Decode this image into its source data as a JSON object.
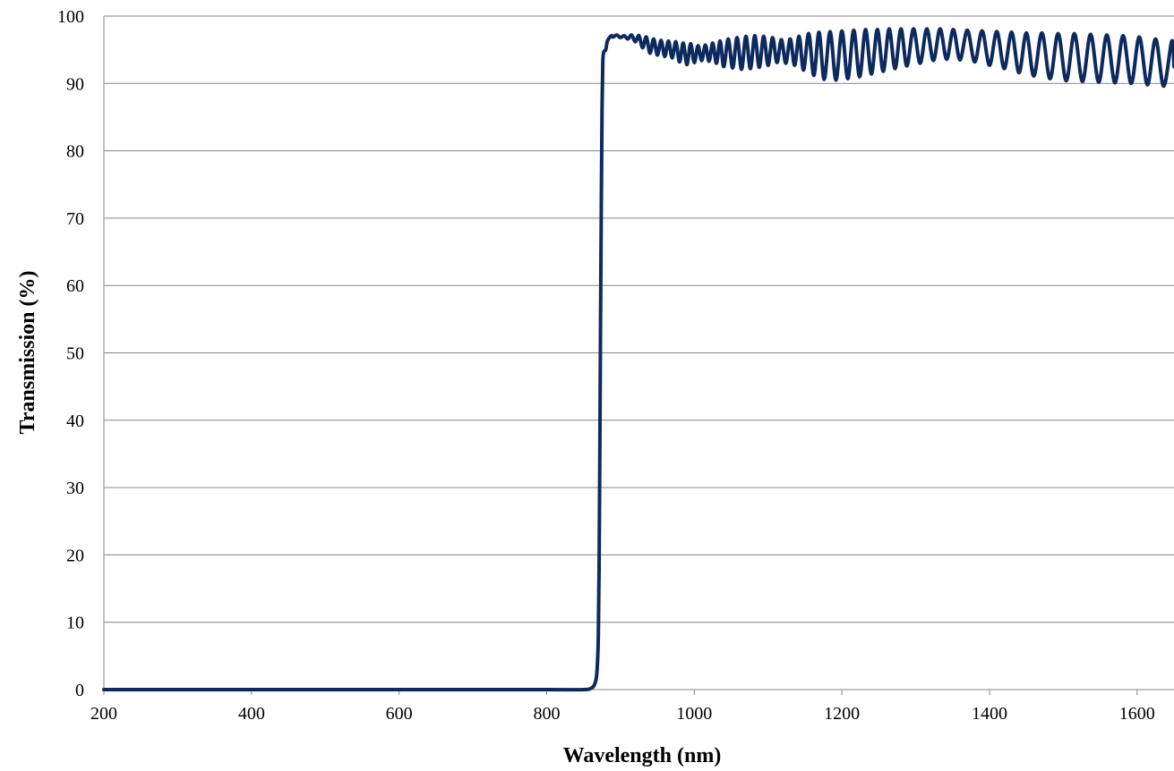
{
  "chart_data": {
    "type": "line",
    "title": "",
    "xlabel": "Wavelength (nm)",
    "ylabel": "Transmission (%)",
    "xlim": [
      200,
      1650
    ],
    "ylim": [
      0,
      100
    ],
    "x_ticks": [
      200,
      400,
      600,
      800,
      1000,
      1200,
      1400,
      1600
    ],
    "y_ticks": [
      0,
      10,
      20,
      30,
      40,
      50,
      60,
      70,
      80,
      90,
      100
    ],
    "grid": "horizontal",
    "legend": "none",
    "line_color": "#0d2a5e",
    "grid_color": "#868686",
    "series": [
      {
        "x": [
          200,
          300,
          400,
          500,
          600,
          700,
          800,
          850,
          860,
          865,
          868,
          870,
          871,
          872,
          873,
          874,
          875,
          876,
          877,
          878,
          880,
          882,
          885,
          888,
          890,
          895,
          900,
          905,
          910,
          915,
          920,
          925,
          930,
          935,
          940,
          945,
          950,
          955,
          960,
          965,
          970,
          975,
          980,
          985,
          990,
          995,
          1000,
          1005,
          1010,
          1015,
          1020,
          1025,
          1030,
          1035,
          1040,
          1046,
          1052,
          1058,
          1064,
          1070,
          1076,
          1082,
          1088,
          1094,
          1100,
          1106,
          1112,
          1118,
          1124,
          1130,
          1136,
          1142,
          1148,
          1155,
          1162,
          1169,
          1176,
          1184,
          1192,
          1200,
          1208,
          1216,
          1224,
          1232,
          1240,
          1248,
          1256,
          1264,
          1272,
          1280,
          1288,
          1297,
          1306,
          1315,
          1324,
          1333,
          1342,
          1351,
          1360,
          1370,
          1380,
          1390,
          1400,
          1410,
          1420,
          1430,
          1440,
          1450,
          1460,
          1471,
          1482,
          1493,
          1504,
          1515,
          1526,
          1537,
          1548,
          1559,
          1570,
          1581,
          1592,
          1603,
          1614,
          1625,
          1636,
          1647,
          1650
        ],
        "values": [
          0,
          0,
          0,
          0,
          0,
          0,
          0,
          0,
          0.2,
          0.8,
          2.5,
          8,
          18,
          35,
          55,
          72,
          86,
          93,
          94.5,
          94.8,
          95,
          96.2,
          96.8,
          97.1,
          96.9,
          97.2,
          96.8,
          97.1,
          96.6,
          97.2,
          96.2,
          97.1,
          95.3,
          96.9,
          94.5,
          96.6,
          94.2,
          96.4,
          94.0,
          96.3,
          93.8,
          96.2,
          93.2,
          96.0,
          92.8,
          95.9,
          93.1,
          95.6,
          93.4,
          95.7,
          93.3,
          96.0,
          93.0,
          96.3,
          92.5,
          96.6,
          92.3,
          96.8,
          92.1,
          97.0,
          92.2,
          97.1,
          92.4,
          97.0,
          92.7,
          96.8,
          93.1,
          96.5,
          93.0,
          96.6,
          92.7,
          97.0,
          92.0,
          97.4,
          91.2,
          97.6,
          90.6,
          97.7,
          90.5,
          97.8,
          90.7,
          97.9,
          91.0,
          98.0,
          91.4,
          98.0,
          91.8,
          98.1,
          92.2,
          98.1,
          92.6,
          98.1,
          93.0,
          98.1,
          93.4,
          98.1,
          93.6,
          98.0,
          93.5,
          97.9,
          93.2,
          97.8,
          92.7,
          97.7,
          92.2,
          97.6,
          91.6,
          97.5,
          91.1,
          97.5,
          90.7,
          97.4,
          90.4,
          97.4,
          90.3,
          97.3,
          90.2,
          97.2,
          90.1,
          97.1,
          90.0,
          96.9,
          89.8,
          96.6,
          89.6,
          96.3,
          92.5
        ]
      }
    ]
  }
}
